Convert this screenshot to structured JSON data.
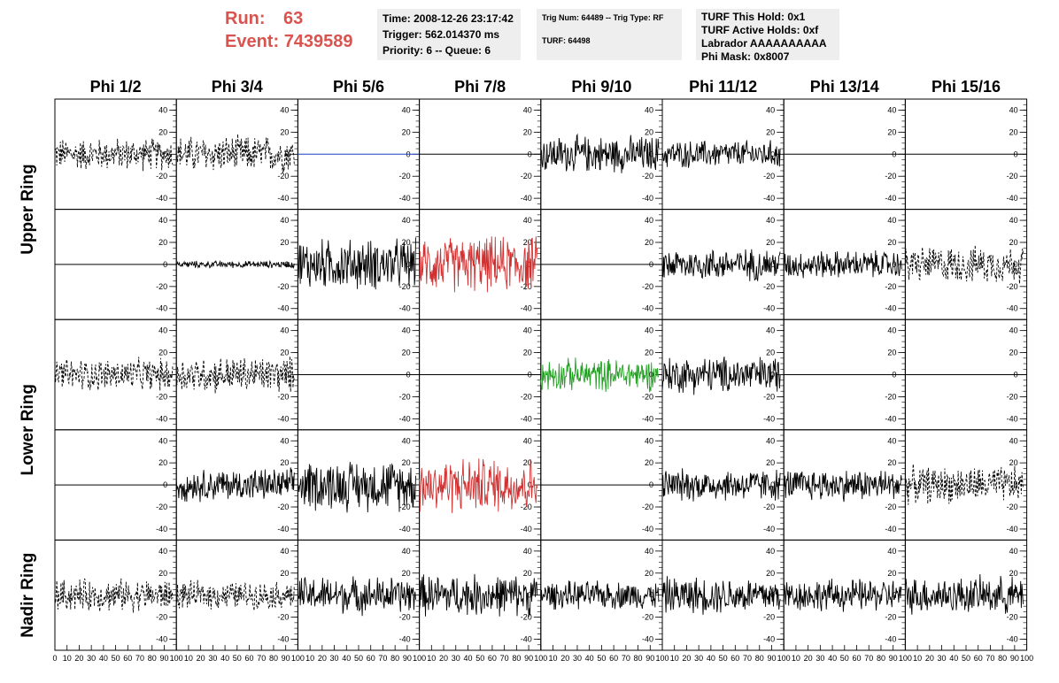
{
  "header": {
    "run_label": "Run:",
    "run_value": "63",
    "event_label": "Event:",
    "event_value": "7439589",
    "time": "Time: 2008-12-26 23:17:42",
    "trigger": "Trigger: 562.014370 ms",
    "priority": "Priority: 6 -- Queue: 6",
    "trig_num": "Trig Num: 64489 -- Trig Type: RF",
    "turf": "TURF: 64498",
    "turf_this_hold": "TURF This Hold: 0x1",
    "turf_active_holds": "TURF Active Holds: 0xf",
    "labrador": "Labrador AAAAAAAAAA",
    "phi_mask": "Phi Mask: 0x8007"
  },
  "chart_data": {
    "type": "line",
    "columns": [
      "Phi 1/2",
      "Phi 3/4",
      "Phi 5/6",
      "Phi 7/8",
      "Phi 9/10",
      "Phi 11/12",
      "Phi 13/14",
      "Phi 15/16"
    ],
    "rows": [
      "Upper Ring",
      "Lower Ring",
      "Nadir Ring"
    ],
    "xlim": [
      0,
      100
    ],
    "ylim": [
      -50,
      50
    ],
    "x_ticks": [
      "0",
      "10",
      "20",
      "30",
      "40",
      "50",
      "60",
      "70",
      "80",
      "90",
      "100"
    ],
    "y_ticks": [
      "40",
      "20",
      "0",
      "-20",
      "-40"
    ],
    "colors": {
      "black": "#000000",
      "red": "#d03030",
      "green": "#22a022",
      "blue": "#1f3fbf"
    },
    "panels": [
      [
        {
          "style": "dashed",
          "color": "black",
          "amp": 14
        },
        {
          "style": "dashed",
          "color": "black",
          "amp": 16
        },
        {
          "style": "flat",
          "color": "blue",
          "amp": 0
        },
        {
          "style": "flat",
          "color": "black",
          "amp": 0
        },
        {
          "style": "solid",
          "color": "black",
          "amp": 16
        },
        {
          "style": "solid",
          "color": "black",
          "amp": 12
        },
        {
          "style": "flat",
          "color": "black",
          "amp": 0
        },
        {
          "style": "flat",
          "color": "black",
          "amp": 0
        }
      ],
      [
        {
          "style": "flat",
          "color": "black",
          "amp": 0
        },
        {
          "style": "solid",
          "color": "black",
          "amp": 3
        },
        {
          "style": "solid",
          "color": "black",
          "amp": 22
        },
        {
          "style": "solid",
          "color": "red",
          "amp": 24
        },
        {
          "style": "flat",
          "color": "black",
          "amp": 0
        },
        {
          "style": "solid",
          "color": "black",
          "amp": 14
        },
        {
          "style": "solid",
          "color": "black",
          "amp": 12
        },
        {
          "style": "dashed",
          "color": "black",
          "amp": 16
        }
      ],
      [
        {
          "style": "dashed",
          "color": "black",
          "amp": 14
        },
        {
          "style": "dashed",
          "color": "black",
          "amp": 16
        },
        {
          "style": "flat",
          "color": "black",
          "amp": 0
        },
        {
          "style": "flat",
          "color": "black",
          "amp": 0
        },
        {
          "style": "solid",
          "color": "green",
          "amp": 14
        },
        {
          "style": "solid",
          "color": "black",
          "amp": 16
        },
        {
          "style": "flat",
          "color": "black",
          "amp": 0
        },
        {
          "style": "flat",
          "color": "black",
          "amp": 0
        }
      ],
      [
        {
          "style": "flat",
          "color": "black",
          "amp": 0
        },
        {
          "style": "solid",
          "color": "black",
          "amp": 14
        },
        {
          "style": "solid",
          "color": "black",
          "amp": 22
        },
        {
          "style": "solid",
          "color": "red",
          "amp": 24
        },
        {
          "style": "flat",
          "color": "black",
          "amp": 0
        },
        {
          "style": "solid",
          "color": "black",
          "amp": 14
        },
        {
          "style": "solid",
          "color": "black",
          "amp": 14
        },
        {
          "style": "dashed",
          "color": "black",
          "amp": 16
        }
      ],
      [
        {
          "style": "dashed",
          "color": "black",
          "amp": 14
        },
        {
          "style": "dashed",
          "color": "black",
          "amp": 12
        },
        {
          "style": "solid",
          "color": "black",
          "amp": 16
        },
        {
          "style": "solid",
          "color": "black",
          "amp": 18
        },
        {
          "style": "solid",
          "color": "black",
          "amp": 12
        },
        {
          "style": "solid",
          "color": "black",
          "amp": 16
        },
        {
          "style": "solid",
          "color": "black",
          "amp": 14
        },
        {
          "style": "solid",
          "color": "black",
          "amp": 16
        }
      ]
    ]
  }
}
